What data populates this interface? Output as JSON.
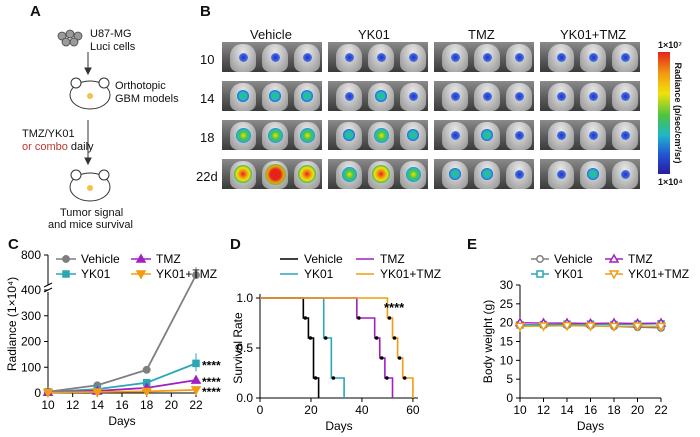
{
  "panels": {
    "a": "A",
    "b": "B",
    "c": "C",
    "d": "D",
    "e": "E"
  },
  "panelA": {
    "cell_line": "U87-MG",
    "luci": "Luci cells",
    "model_line1": "Orthotopic",
    "model_line2": "GBM models",
    "treatment": "TMZ/YK01",
    "combo": "or combo",
    "daily": " daily",
    "outcome_line1": "Tumor signal",
    "outcome_line2": "and mice survival"
  },
  "panelB": {
    "columns": [
      "Vehicle",
      "YK01",
      "TMZ",
      "YK01+TMZ"
    ],
    "rows": [
      "10",
      "14",
      "18",
      "22d"
    ],
    "intensity": [
      [
        [
          1,
          1,
          1
        ],
        [
          1,
          1,
          1
        ],
        [
          1,
          1,
          1
        ],
        [
          1,
          1,
          1
        ]
      ],
      [
        [
          2,
          2,
          2
        ],
        [
          1,
          2,
          1
        ],
        [
          1,
          1,
          1
        ],
        [
          1,
          1,
          1
        ]
      ],
      [
        [
          3,
          3,
          3
        ],
        [
          2,
          3,
          2
        ],
        [
          1,
          2,
          1
        ],
        [
          1,
          1,
          1
        ]
      ],
      [
        [
          4,
          5,
          4
        ],
        [
          3,
          4,
          3
        ],
        [
          2,
          2,
          1
        ],
        [
          1,
          2,
          1
        ]
      ]
    ],
    "colorbar_top": "1×10⁷",
    "colorbar_bottom": "1×10⁴",
    "colorbar_label": "Radiance (p/sec/cm²/sr)"
  },
  "colors": {
    "vehicle": "#7f7f7f",
    "yk01": "#2aa6b5",
    "tmz": "#a020c0",
    "combo": "#f39c12"
  },
  "chart_data": [
    {
      "type": "line",
      "panel": "C",
      "xlabel": "Days",
      "ylabel": "Radiance (1×10⁴)",
      "x": [
        10,
        14,
        18,
        22
      ],
      "xticks": [
        "10",
        "12",
        "14",
        "16",
        "18",
        "20",
        "22"
      ],
      "yticks": [
        "0",
        "100",
        "200",
        "300",
        "400",
        "800"
      ],
      "series": [
        {
          "name": "Vehicle",
          "values": [
            5,
            30,
            90,
            570
          ]
        },
        {
          "name": "YK01",
          "values": [
            4,
            15,
            40,
            115
          ]
        },
        {
          "name": "TMZ",
          "values": [
            3,
            8,
            20,
            50
          ]
        },
        {
          "name": "YK01+TMZ",
          "values": [
            2,
            4,
            6,
            12
          ]
        }
      ],
      "annotations": [
        "****",
        "****",
        "****"
      ]
    },
    {
      "type": "line",
      "panel": "D",
      "xlabel": "Days",
      "ylabel": "Survival Rate",
      "xticks": [
        "0",
        "20",
        "40",
        "60"
      ],
      "yticks": [
        "0.0",
        "0.5",
        "1.0"
      ],
      "series": [
        {
          "name": "Vehicle",
          "steps": [
            [
              0,
              1.0
            ],
            [
              17,
              0.8
            ],
            [
              19,
              0.6
            ],
            [
              21,
              0.2
            ],
            [
              23,
              0.0
            ]
          ]
        },
        {
          "name": "YK01",
          "steps": [
            [
              0,
              1.0
            ],
            [
              25,
              0.6
            ],
            [
              28,
              0.2
            ],
            [
              33,
              0.0
            ]
          ]
        },
        {
          "name": "TMZ",
          "steps": [
            [
              0,
              1.0
            ],
            [
              38,
              0.8
            ],
            [
              45,
              0.6
            ],
            [
              47,
              0.4
            ],
            [
              49,
              0.2
            ],
            [
              52,
              0.0
            ]
          ]
        },
        {
          "name": "YK01+TMZ",
          "steps": [
            [
              0,
              1.0
            ],
            [
              50,
              0.8
            ],
            [
              52,
              0.6
            ],
            [
              54,
              0.4
            ],
            [
              56,
              0.2
            ],
            [
              60,
              0.0
            ]
          ]
        }
      ],
      "annotation": "****"
    },
    {
      "type": "line",
      "panel": "E",
      "xlabel": "Days",
      "ylabel": "Body weight (g)",
      "x": [
        10,
        12,
        14,
        16,
        18,
        20,
        22
      ],
      "xticks": [
        "10",
        "12",
        "14",
        "16",
        "18",
        "20",
        "22"
      ],
      "yticks": [
        "0",
        "5",
        "10",
        "15",
        "20",
        "25",
        "30"
      ],
      "series": [
        {
          "name": "Vehicle",
          "values": [
            19.5,
            19.4,
            19.3,
            19.2,
            19.0,
            18.8,
            18.6
          ]
        },
        {
          "name": "YK01",
          "values": [
            19.4,
            19.5,
            19.6,
            19.6,
            19.5,
            19.6,
            19.7
          ]
        },
        {
          "name": "TMZ",
          "values": [
            20.0,
            19.9,
            19.9,
            19.8,
            19.9,
            19.8,
            19.9
          ]
        },
        {
          "name": "YK01+TMZ",
          "values": [
            19.0,
            19.1,
            19.2,
            19.1,
            19.0,
            19.1,
            19.0
          ]
        }
      ]
    }
  ]
}
